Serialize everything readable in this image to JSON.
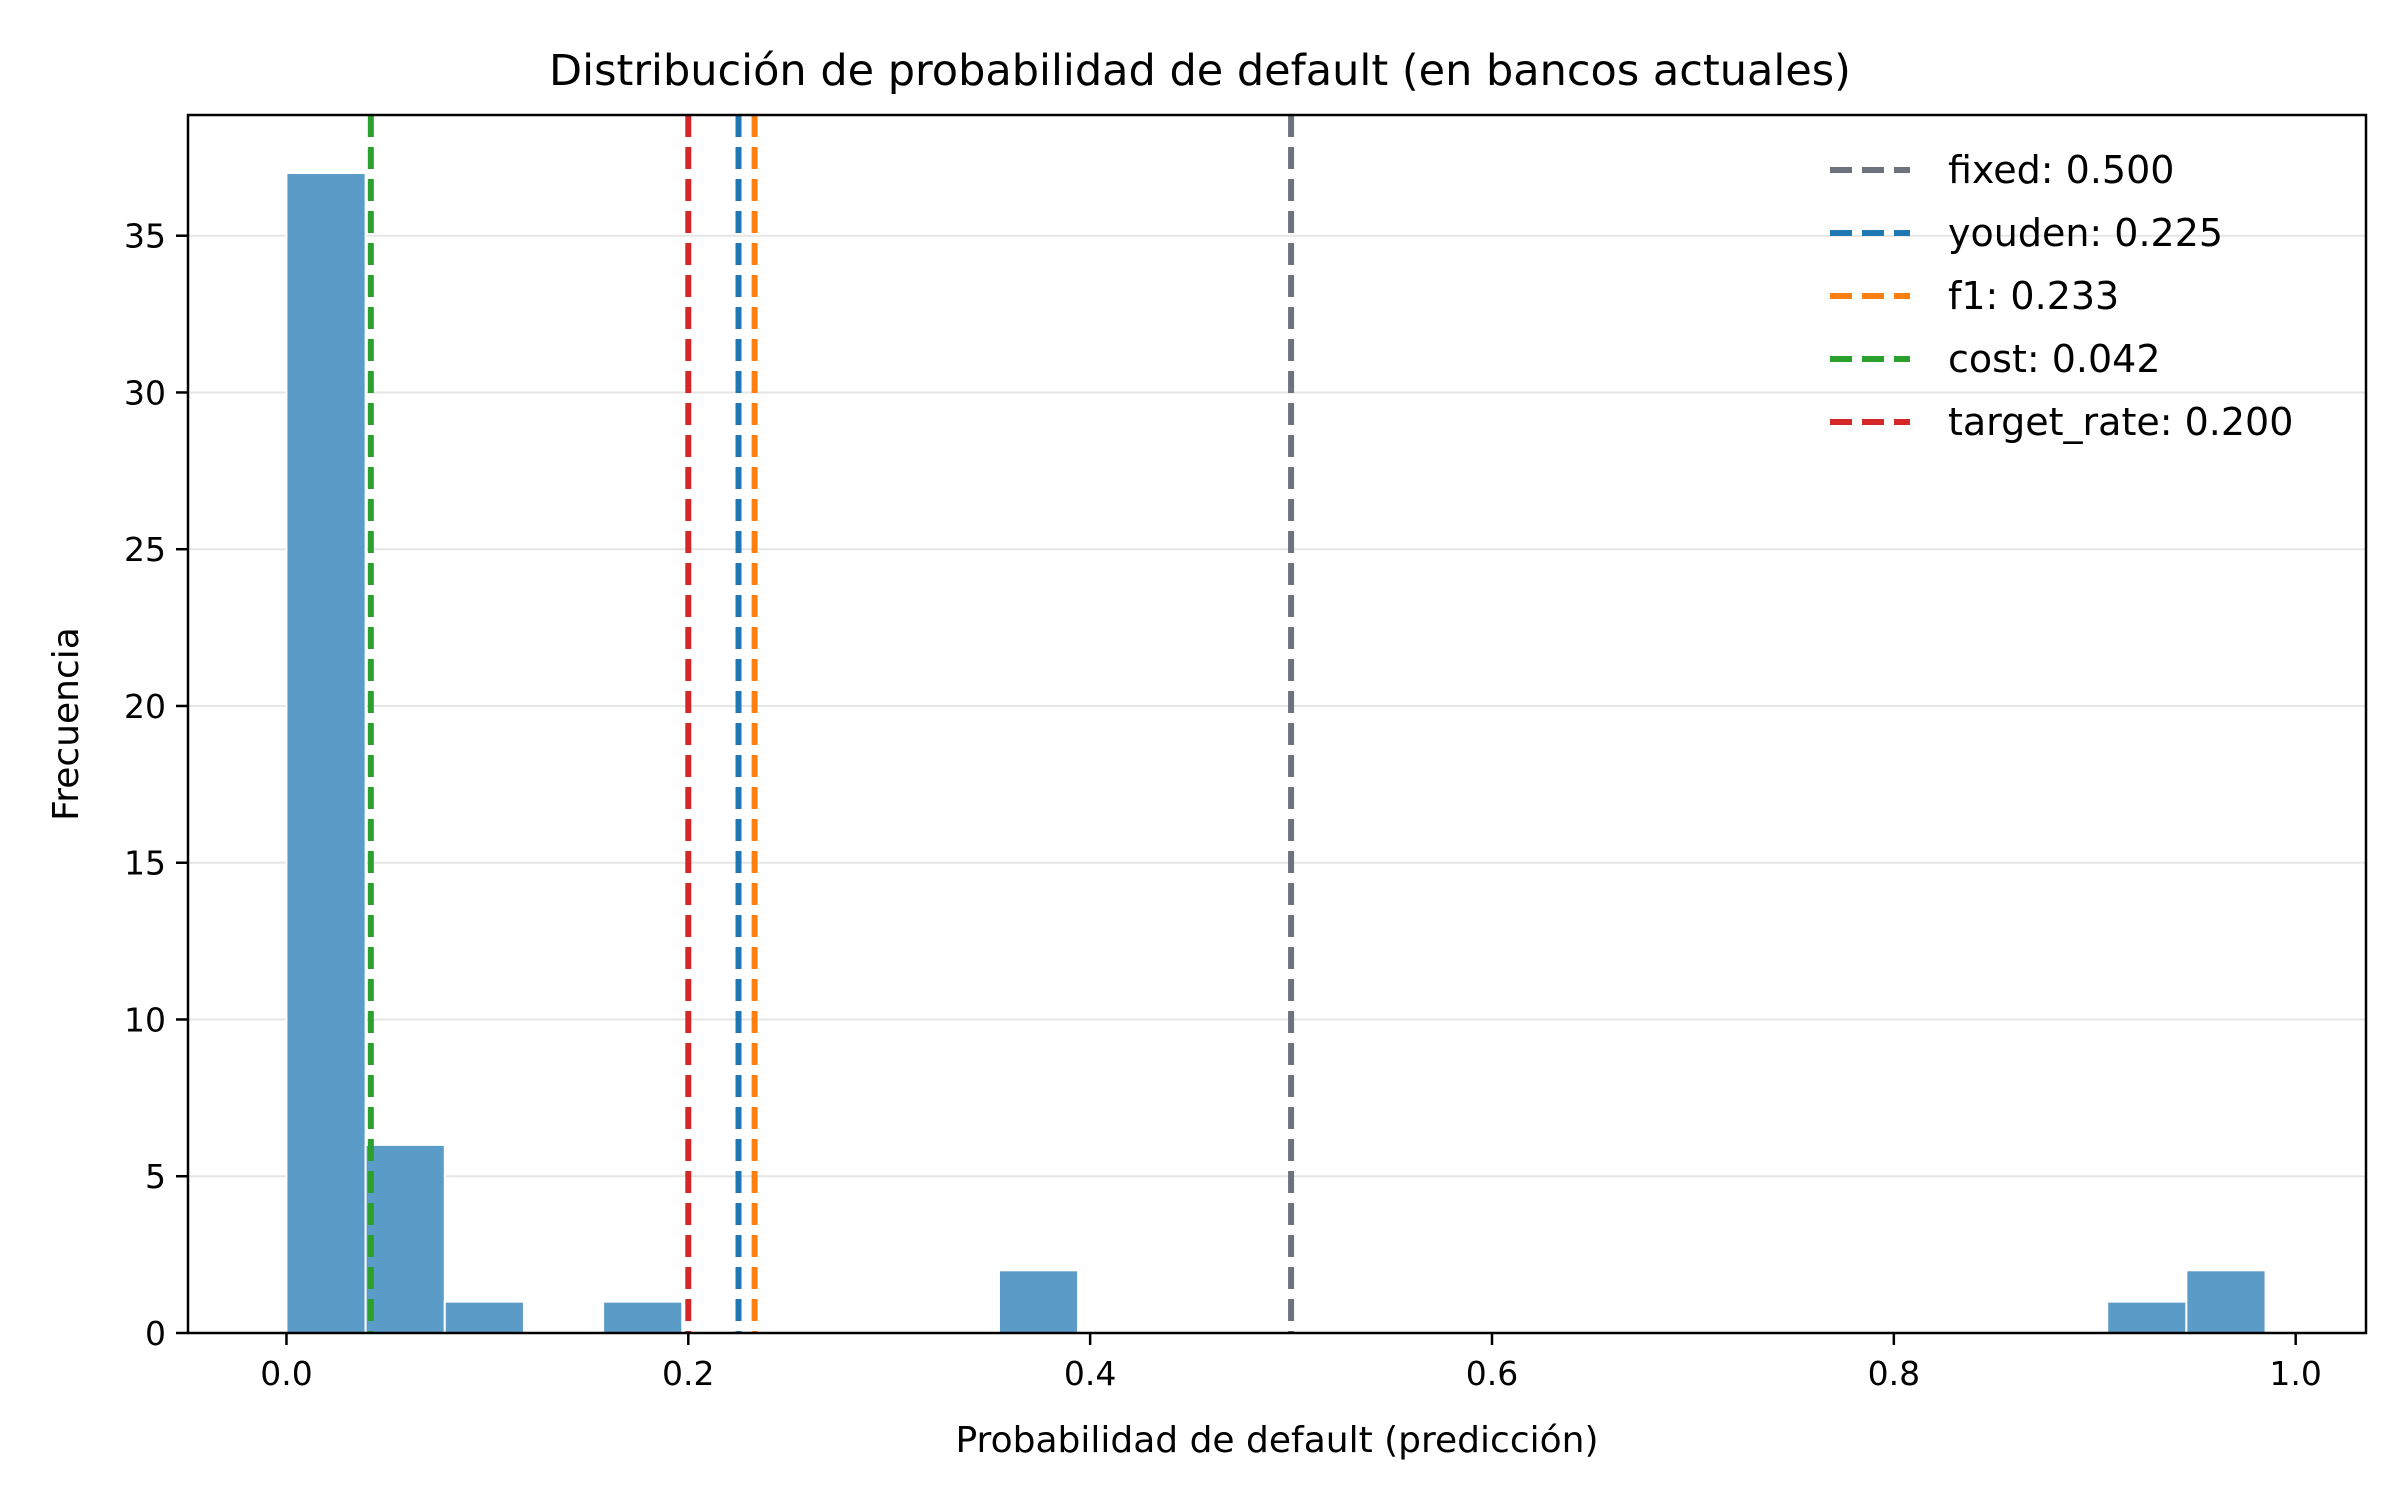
{
  "chart_data": {
    "type": "bar",
    "subtype": "histogram",
    "title": "Distribución de probabilidad de default (en bancos actuales)",
    "xlabel": "Probabilidad de default (predicción)",
    "ylabel": "Frecuencia",
    "xlim": [
      -0.049,
      1.035
    ],
    "ylim": [
      0,
      38.85
    ],
    "xticks": [
      0.0,
      0.2,
      0.4,
      0.6,
      0.8,
      1.0
    ],
    "xtick_labels": [
      "0.0",
      "0.2",
      "0.4",
      "0.6",
      "0.8",
      "1.0"
    ],
    "yticks": [
      0,
      5,
      10,
      15,
      20,
      25,
      30,
      35
    ],
    "ytick_labels": [
      "0",
      "5",
      "10",
      "15",
      "20",
      "25",
      "30",
      "35"
    ],
    "grid": "horizontal",
    "bar_color": "#5b9bc8",
    "bins": [
      {
        "x0": 0.0,
        "x1": 0.0394,
        "count": 37
      },
      {
        "x0": 0.0394,
        "x1": 0.0788,
        "count": 6
      },
      {
        "x0": 0.0788,
        "x1": 0.1182,
        "count": 1
      },
      {
        "x0": 0.1182,
        "x1": 0.1576,
        "count": 0
      },
      {
        "x0": 0.1576,
        "x1": 0.197,
        "count": 1
      },
      {
        "x0": 0.197,
        "x1": 0.2364,
        "count": 0
      },
      {
        "x0": 0.2364,
        "x1": 0.2758,
        "count": 0
      },
      {
        "x0": 0.2758,
        "x1": 0.3152,
        "count": 0
      },
      {
        "x0": 0.3152,
        "x1": 0.3546,
        "count": 0
      },
      {
        "x0": 0.3546,
        "x1": 0.394,
        "count": 2
      },
      {
        "x0": 0.394,
        "x1": 0.4334,
        "count": 0
      },
      {
        "x0": 0.4334,
        "x1": 0.4728,
        "count": 0
      },
      {
        "x0": 0.4728,
        "x1": 0.5122,
        "count": 0
      },
      {
        "x0": 0.5122,
        "x1": 0.5516,
        "count": 0
      },
      {
        "x0": 0.5516,
        "x1": 0.591,
        "count": 0
      },
      {
        "x0": 0.591,
        "x1": 0.6304,
        "count": 0
      },
      {
        "x0": 0.6304,
        "x1": 0.6698,
        "count": 0
      },
      {
        "x0": 0.6698,
        "x1": 0.7092,
        "count": 0
      },
      {
        "x0": 0.7092,
        "x1": 0.7486,
        "count": 0
      },
      {
        "x0": 0.7486,
        "x1": 0.788,
        "count": 0
      },
      {
        "x0": 0.788,
        "x1": 0.8274,
        "count": 0
      },
      {
        "x0": 0.8274,
        "x1": 0.8668,
        "count": 0
      },
      {
        "x0": 0.8668,
        "x1": 0.9062,
        "count": 0
      },
      {
        "x0": 0.9062,
        "x1": 0.9456,
        "count": 1
      },
      {
        "x0": 0.9456,
        "x1": 0.985,
        "count": 2
      }
    ],
    "thresholds": [
      {
        "name": "fixed",
        "value": 0.5,
        "label": "fixed: 0.500",
        "color": "#6c737d"
      },
      {
        "name": "youden",
        "value": 0.225,
        "label": "youden: 0.225",
        "color": "#1f77b4"
      },
      {
        "name": "f1",
        "value": 0.233,
        "label": "f1: 0.233",
        "color": "#ff7f0e"
      },
      {
        "name": "cost",
        "value": 0.042,
        "label": "cost: 0.042",
        "color": "#2ca02c"
      },
      {
        "name": "target_rate",
        "value": 0.2,
        "label": "target_rate: 0.200",
        "color": "#d62728"
      }
    ],
    "legend_position": "top-right"
  }
}
